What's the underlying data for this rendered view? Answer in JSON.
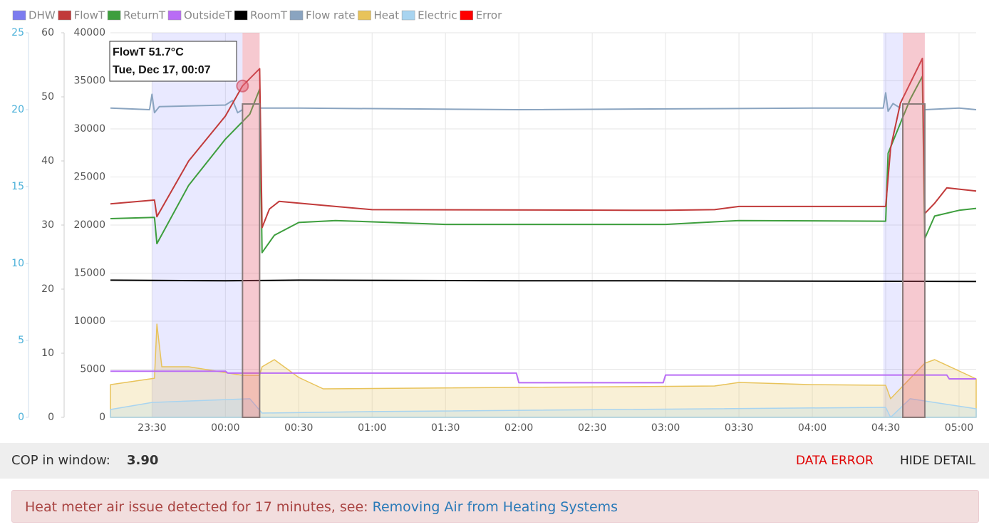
{
  "chart_data": {
    "type": "line",
    "legend": [
      {
        "name": "DHW",
        "color": "#7b7bef"
      },
      {
        "name": "FlowT",
        "color": "#c13a3a"
      },
      {
        "name": "ReturnT",
        "color": "#3d9e3d"
      },
      {
        "name": "OutsideT",
        "color": "#b96cf5"
      },
      {
        "name": "RoomT",
        "color": "#000000"
      },
      {
        "name": "Flow rate",
        "color": "#8aa4c0"
      },
      {
        "name": "Heat",
        "color": "#e8c35a"
      },
      {
        "name": "Electric",
        "color": "#a8d4f0"
      },
      {
        "name": "Error",
        "color": "#ff0000"
      }
    ],
    "xlim": [
      "23:13",
      "05:07"
    ],
    "xticks": [
      "23:30",
      "00:00",
      "00:30",
      "01:00",
      "01:30",
      "02:00",
      "02:30",
      "03:00",
      "03:30",
      "04:00",
      "04:30",
      "05:00"
    ],
    "ylim": [
      0,
      40000
    ],
    "yticks": [
      0,
      5000,
      10000,
      15000,
      20000,
      25000,
      30000,
      35000,
      40000
    ],
    "y2lim": [
      0,
      60
    ],
    "y2ticks": [
      0,
      10,
      20,
      30,
      40,
      50,
      60
    ],
    "y3lim": [
      0,
      25
    ],
    "y3ticks": [
      0,
      5,
      10,
      15,
      20,
      25
    ],
    "grid": true,
    "dhw_periods": [
      [
        "23:30",
        "00:07"
      ],
      [
        "04:29",
        "04:37"
      ]
    ],
    "error_periods": [
      [
        "00:07",
        "00:14"
      ],
      [
        "04:37",
        "04:46"
      ]
    ],
    "series": [
      {
        "name": "Heat",
        "color": "#e8c35a",
        "kind": "area",
        "axis": "y",
        "x": [
          "23:13",
          "23:31",
          "23:32",
          "23:34",
          "23:45",
          "00:07",
          "00:14",
          "00:15",
          "00:20",
          "00:30",
          "00:40",
          "01:00",
          "03:20",
          "03:30",
          "04:00",
          "04:30",
          "04:32",
          "04:46",
          "04:50",
          "05:07"
        ],
        "values": [
          3400,
          4070,
          9700,
          5260,
          5260,
          4370,
          4370,
          5260,
          6000,
          4150,
          2960,
          3000,
          3260,
          3630,
          3400,
          3330,
          1930,
          5630,
          6000,
          4000
        ]
      },
      {
        "name": "Electric",
        "color": "#a8d4f0",
        "kind": "area",
        "axis": "y",
        "x": [
          "23:13",
          "23:30",
          "00:10",
          "00:15",
          "01:00",
          "04:30",
          "04:32",
          "04:40",
          "04:50",
          "05:07"
        ],
        "values": [
          815,
          1550,
          1930,
          444,
          600,
          1040,
          0,
          1930,
          1550,
          890
        ]
      },
      {
        "name": "OutsideT",
        "color": "#b96cf5",
        "kind": "line",
        "axis": "y2",
        "x": [
          "23:13",
          "00:00",
          "00:01",
          "01:59",
          "02:00",
          "02:59",
          "03:00",
          "04:55",
          "04:56",
          "05:07"
        ],
        "values": [
          7.2,
          7.2,
          6.9,
          6.9,
          5.4,
          5.4,
          6.6,
          6.6,
          6.0,
          6.0
        ]
      },
      {
        "name": "RoomT",
        "color": "#000000",
        "kind": "line",
        "axis": "y2",
        "x": [
          "23:13",
          "00:00",
          "00:30",
          "02:00",
          "03:00",
          "05:07"
        ],
        "values": [
          21.4,
          21.3,
          21.4,
          21.3,
          21.3,
          21.2
        ]
      },
      {
        "name": "Flow rate",
        "color": "#8aa4c0",
        "kind": "line",
        "axis": "y3",
        "x": [
          "23:13",
          "23:29",
          "23:30",
          "23:31",
          "23:33",
          "00:00",
          "00:03",
          "00:05",
          "00:07",
          "00:10",
          "00:14",
          "00:30",
          "02:00",
          "04:00",
          "04:29",
          "04:30",
          "04:31",
          "04:33",
          "04:36",
          "04:38",
          "04:46",
          "05:00",
          "05:07"
        ],
        "values": [
          20.1,
          20.0,
          21.0,
          19.8,
          20.2,
          20.3,
          20.6,
          19.8,
          20.0,
          null,
          20.1,
          20.1,
          20.0,
          20.1,
          20.1,
          21.1,
          19.9,
          20.4,
          20.1,
          null,
          20.0,
          20.1,
          20.0
        ]
      },
      {
        "name": "ReturnT",
        "color": "#3d9e3d",
        "kind": "line",
        "axis": "y2",
        "x": [
          "23:13",
          "23:31",
          "23:32",
          "23:45",
          "00:00",
          "00:10",
          "00:14",
          "00:15",
          "00:20",
          "00:30",
          "00:45",
          "01:30",
          "03:00",
          "03:30",
          "04:30",
          "04:31",
          "04:40",
          "04:45",
          "04:46",
          "04:50",
          "05:00",
          "05:07"
        ],
        "values": [
          31,
          31.2,
          27.1,
          36.2,
          43.4,
          47.3,
          51.2,
          25.7,
          28.4,
          30.4,
          30.7,
          30.1,
          30.1,
          30.7,
          30.6,
          41.2,
          49.6,
          53.2,
          27.9,
          31.4,
          32.3,
          32.6
        ]
      },
      {
        "name": "FlowT",
        "color": "#c13a3a",
        "kind": "line",
        "axis": "y2",
        "x": [
          "23:13",
          "23:31",
          "23:32",
          "23:45",
          "00:00",
          "00:07",
          "00:14",
          "00:15",
          "00:18",
          "00:22",
          "00:45",
          "01:00",
          "03:00",
          "03:20",
          "03:30",
          "04:30",
          "04:32",
          "04:36",
          "04:45",
          "04:46",
          "04:50",
          "04:55",
          "05:07"
        ],
        "values": [
          33.3,
          33.9,
          31.3,
          40,
          47,
          51.7,
          54.4,
          29.6,
          32.5,
          33.7,
          32.9,
          32.4,
          32.3,
          32.4,
          32.9,
          32.9,
          42,
          49,
          56,
          31.8,
          33.4,
          35.8,
          35.3
        ]
      }
    ],
    "tooltip": {
      "lines": [
        "FlowT 51.7°C",
        "Tue, Dec 17, 00:07"
      ]
    }
  },
  "footer": {
    "cop_label": "COP in window:",
    "cop_value": "3.90",
    "data_error": "DATA ERROR",
    "hide_detail": "HIDE DETAIL"
  },
  "alert": {
    "text": "Heat meter air issue detected for 17 minutes, see:",
    "link": "Removing Air from Heating Systems"
  }
}
